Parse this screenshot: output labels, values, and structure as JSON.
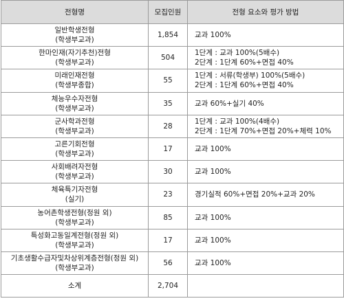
{
  "header": {
    "col_name": "전형명",
    "col_count": "모집인원",
    "col_method": "전형 요소와 평가 방법"
  },
  "rows": [
    {
      "name": [
        "일반학생전형",
        "(학생부교과)"
      ],
      "count": "1,854",
      "method": [
        "교과 100%"
      ]
    },
    {
      "name": [
        "한마인재(자기추천)전형",
        "(학생부교과)"
      ],
      "count": "504",
      "method": [
        "1단계 : 교과 100%(5배수)",
        "2단계 : 1단계 60%+면접 40%"
      ]
    },
    {
      "name": [
        "미래인재전형",
        "(학생부종합)"
      ],
      "count": "55",
      "method": [
        "1단계 : 서류(학생부) 100%(5배수)",
        "2단계 : 1단계 60%+면접 40%"
      ]
    },
    {
      "name": [
        "체능우수자전형",
        "(학생부교과)"
      ],
      "count": "35",
      "method": [
        "교과 60%+실기 40%"
      ]
    },
    {
      "name": [
        "군사학과전형",
        "(학생부교과)"
      ],
      "count": "28",
      "method": [
        "1단계 : 교과 100%(4배수)",
        "2단계 : 1단계 70%+면접 20%+체력 10%"
      ]
    },
    {
      "name": [
        "고른기회전형",
        "(학생부교과)"
      ],
      "count": "17",
      "method": [
        "교과 100%"
      ]
    },
    {
      "name": [
        "사회배려자전형",
        "(학생부교과)"
      ],
      "count": "30",
      "method": [
        "교과 100%"
      ]
    },
    {
      "name": [
        "체육특기자전형",
        "(실기)"
      ],
      "count": "23",
      "method": [
        "경기실적 60%+면접 20%+교과 20%"
      ]
    },
    {
      "name": [
        "농어촌학생전형(정원 외)",
        "(학생부교과)"
      ],
      "count": "85",
      "method": [
        "교과 100%"
      ]
    },
    {
      "name": [
        "특성화고동일계전형(정원 외)",
        "(학생부교과)"
      ],
      "count": "17",
      "method": [
        "교과 100%"
      ]
    },
    {
      "name": [
        "기초생활수급자및차상위계층전형(정원 외)",
        "(학생부교과)"
      ],
      "count": "56",
      "method": [
        "교과 100%"
      ]
    }
  ],
  "total": {
    "label": "소계",
    "count": "2,704",
    "method": ""
  }
}
